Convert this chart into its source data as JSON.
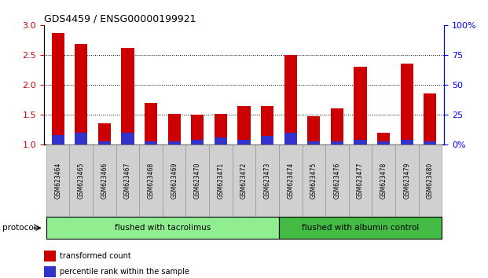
{
  "title": "GDS4459 / ENSG00000199921",
  "categories": [
    "GSM623464",
    "GSM623465",
    "GSM623466",
    "GSM623467",
    "GSM623468",
    "GSM623469",
    "GSM623470",
    "GSM623471",
    "GSM623472",
    "GSM623473",
    "GSM623474",
    "GSM623475",
    "GSM623476",
    "GSM623477",
    "GSM623478",
    "GSM623479",
    "GSM623480"
  ],
  "red_values": [
    2.87,
    2.68,
    1.35,
    2.62,
    1.7,
    1.52,
    1.5,
    1.52,
    1.65,
    1.65,
    2.5,
    1.48,
    1.6,
    2.3,
    1.2,
    2.35,
    1.85
  ],
  "blue_percentiles": [
    8,
    10,
    3,
    10,
    3,
    3,
    4,
    6,
    4,
    7,
    10,
    3,
    3,
    4,
    3,
    4,
    3
  ],
  "group1_end_idx": 10,
  "group1_label": "flushed with tacrolimus",
  "group2_label": "flushed with albumin control",
  "red_color": "#cc0000",
  "blue_color": "#3333cc",
  "group1_bg": "#90ee90",
  "group2_bg": "#44bb44",
  "xlim": [
    -0.6,
    16.6
  ],
  "ylim_left": [
    1.0,
    3.0
  ],
  "ylim_right": [
    0,
    100
  ],
  "yticks_left": [
    1.0,
    1.5,
    2.0,
    2.5,
    3.0
  ],
  "yticks_right": [
    0,
    25,
    50,
    75,
    100
  ],
  "right_tick_labels": [
    "0%",
    "25",
    "50",
    "75",
    "100%"
  ],
  "grid_yticks": [
    1.5,
    2.0,
    2.5
  ],
  "protocol_label": "protocol",
  "legend_red": "transformed count",
  "legend_blue": "percentile rank within the sample",
  "bar_width": 0.55
}
